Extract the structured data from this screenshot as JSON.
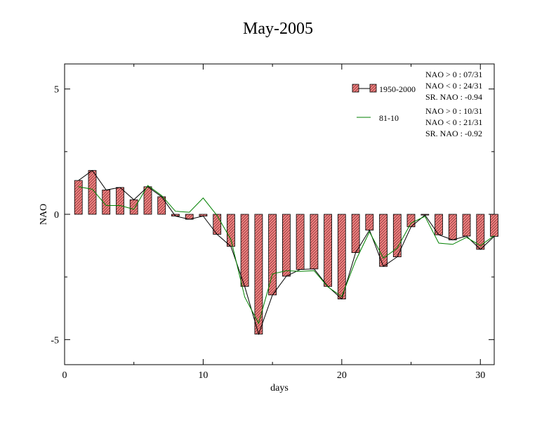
{
  "chart_data": {
    "type": "bar",
    "title": "May-2005",
    "xlabel": "days",
    "ylabel": "NAO",
    "xlim": [
      0,
      31
    ],
    "ylim": [
      -6,
      6
    ],
    "xticks": [
      0,
      10,
      20,
      30
    ],
    "yticks": [
      -5,
      0,
      5
    ],
    "x": [
      1,
      2,
      3,
      4,
      5,
      6,
      7,
      8,
      9,
      10,
      11,
      12,
      13,
      14,
      15,
      16,
      17,
      18,
      19,
      20,
      21,
      22,
      23,
      24,
      25,
      26,
      27,
      28,
      29,
      30,
      31
    ],
    "series": [
      {
        "name": "1950-2000",
        "kind": "bar-with-line",
        "color": "#f08080",
        "values": [
          1.35,
          1.75,
          0.97,
          1.07,
          0.58,
          1.1,
          0.7,
          -0.07,
          -0.2,
          -0.07,
          -0.8,
          -1.28,
          -2.88,
          -4.78,
          -3.22,
          -2.47,
          -2.2,
          -2.18,
          -2.88,
          -3.38,
          -1.53,
          -0.63,
          -2.08,
          -1.7,
          -0.5,
          -0.03,
          -0.82,
          -1.02,
          -0.87,
          -1.4,
          -0.88
        ]
      },
      {
        "name": "81-10",
        "kind": "line",
        "color": "#008000",
        "values": [
          1.1,
          1.0,
          0.35,
          0.35,
          0.2,
          1.15,
          0.75,
          0.12,
          0.08,
          0.65,
          -0.05,
          -1.0,
          -3.3,
          -4.35,
          -2.38,
          -2.25,
          -2.28,
          -2.25,
          -2.9,
          -3.28,
          -1.85,
          -0.7,
          -1.75,
          -1.35,
          -0.35,
          -0.08,
          -1.15,
          -1.2,
          -0.92,
          -1.25,
          -0.85
        ]
      }
    ],
    "annotations": {
      "group1": [
        "NAO > 0 : 07/31",
        "NAO < 0 : 24/31",
        "SR. NAO : -0.94"
      ],
      "group2": [
        "NAO > 0 : 10/31",
        "NAO < 0 : 21/31",
        "SR. NAO : -0.92"
      ]
    },
    "legend_placement": "top-right",
    "grid": false
  }
}
